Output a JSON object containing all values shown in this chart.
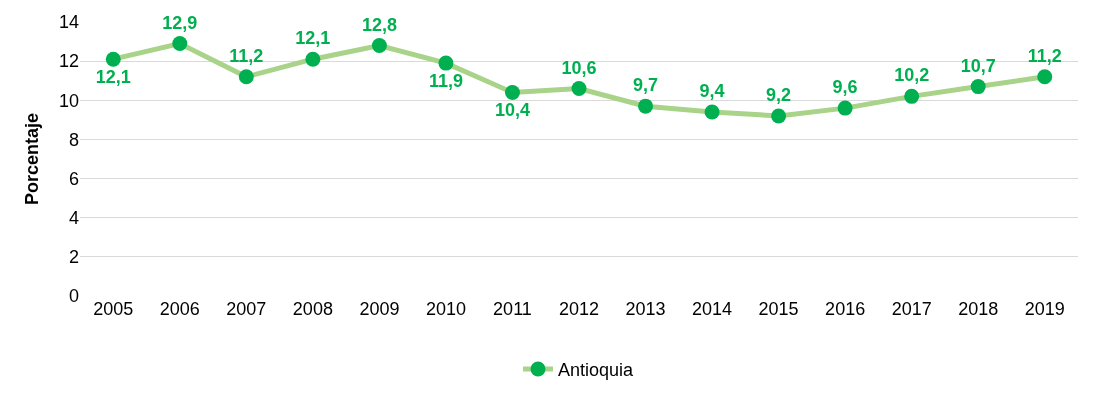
{
  "chart_data": {
    "type": "line",
    "ylabel": "Porcentaje",
    "categories": [
      "2005",
      "2006",
      "2007",
      "2008",
      "2009",
      "2010",
      "2011",
      "2012",
      "2013",
      "2014",
      "2015",
      "2016",
      "2017",
      "2018",
      "2019"
    ],
    "series": [
      {
        "name": "Antioquia",
        "color": "#00b050",
        "values": [
          12.1,
          12.9,
          11.2,
          12.1,
          12.8,
          11.9,
          10.4,
          10.6,
          9.7,
          9.4,
          9.2,
          9.6,
          10.2,
          10.7,
          11.2
        ],
        "value_labels": [
          "12,1",
          "12,9",
          "11,2",
          "12,1",
          "12,8",
          "11,9",
          "10,4",
          "10,6",
          "9,7",
          "9,4",
          "9,2",
          "9,6",
          "10,2",
          "10,7",
          "11,2"
        ]
      }
    ],
    "ylim": [
      0,
      14
    ],
    "yticks": [
      0,
      2,
      4,
      6,
      8,
      10,
      12,
      14
    ],
    "grid": "y",
    "legend": "bottom",
    "marker": "circle",
    "line_style": "solid"
  }
}
